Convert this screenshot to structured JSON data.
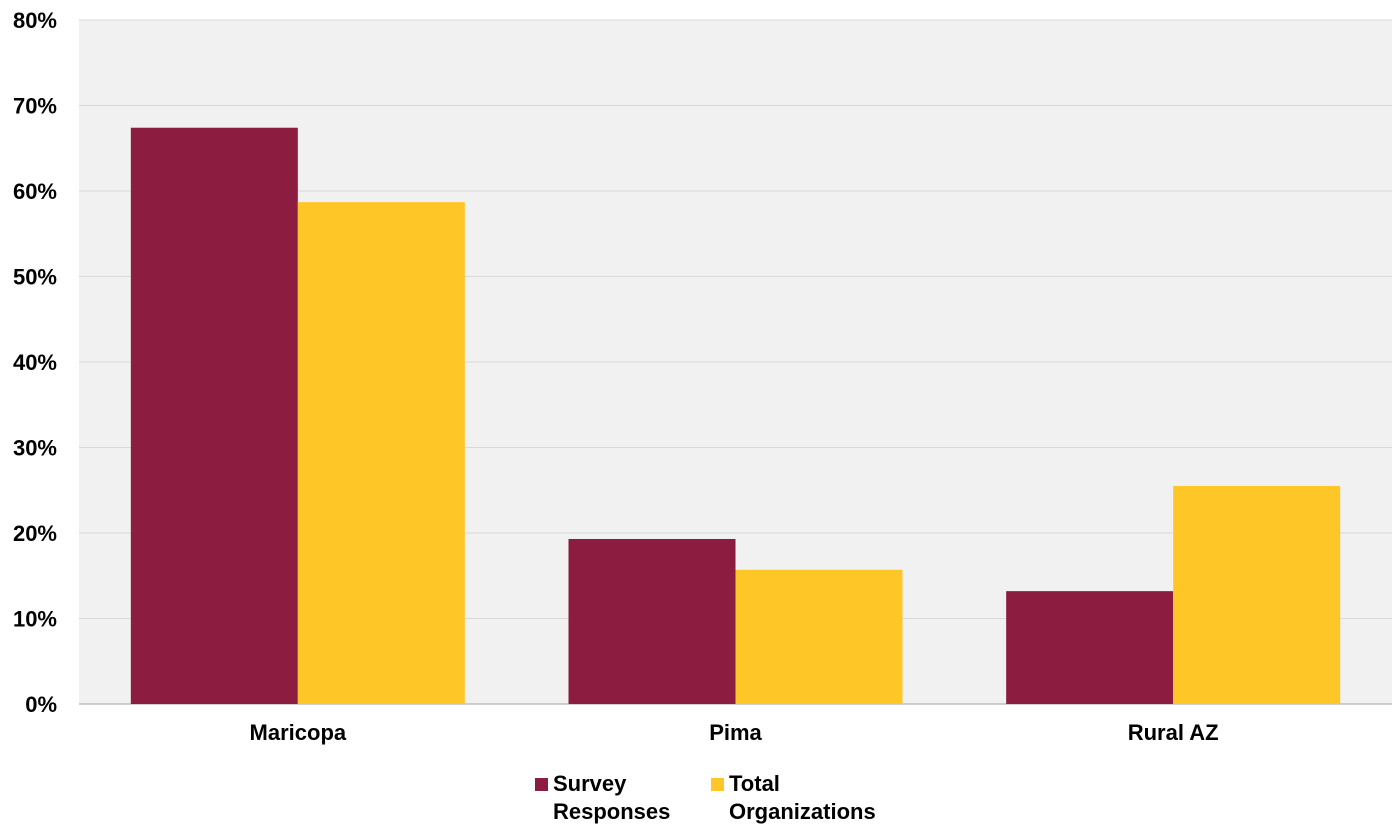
{
  "colors": {
    "plot_background": "#f1f1f1",
    "gridline": "#d9d9d9",
    "axis": "#bfbfbf"
  },
  "chart_data": {
    "type": "bar",
    "categories": [
      "Maricopa",
      "Pima",
      "Rural AZ"
    ],
    "series": [
      {
        "name": "Survey Responses",
        "values": [
          67.4,
          19.3,
          13.2
        ],
        "color": "#8c1d40"
      },
      {
        "name": "Total Organizations",
        "values": [
          58.7,
          15.7,
          25.5
        ],
        "color": "#ffc627"
      }
    ],
    "ylim": [
      0,
      80
    ],
    "yticks": [
      "0%",
      "10%",
      "20%",
      "30%",
      "40%",
      "50%",
      "60%",
      "70%",
      "80%"
    ],
    "grid": true,
    "legend_position": "bottom"
  }
}
